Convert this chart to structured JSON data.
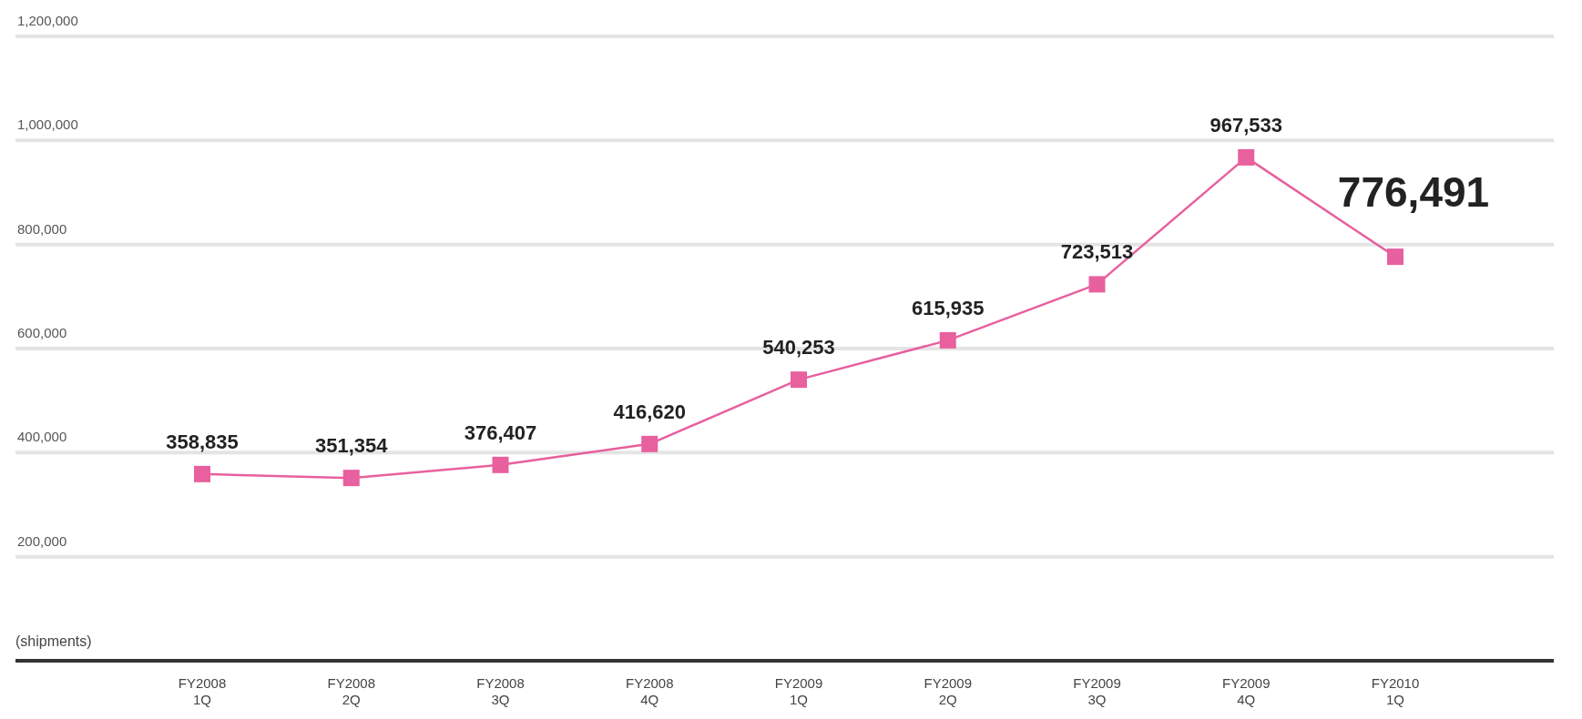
{
  "chart_data": {
    "type": "line",
    "ylabel": "(shipments)",
    "categories": [
      "FY2008\n1Q",
      "FY2008\n2Q",
      "FY2008\n3Q",
      "FY2008\n4Q",
      "FY2009\n1Q",
      "FY2009\n2Q",
      "FY2009\n3Q",
      "FY2009\n4Q",
      "FY2010\n1Q"
    ],
    "series": [
      {
        "color": "#e8609e",
        "values": [
          358835,
          351354,
          376407,
          416620,
          540253,
          615935,
          723513,
          967533,
          776491
        ],
        "value_labels": [
          "358,835",
          "351,354",
          "376,407",
          "416,620",
          "540,253",
          "615,935",
          "723,513",
          "967,533",
          "776,491"
        ]
      }
    ],
    "ylim": [
      0,
      1200000
    ],
    "yticks": [
      "200,000",
      "400,000",
      "600,000",
      "800,000",
      "1,000,000",
      "1,200,000"
    ],
    "grid": "y",
    "marker": "square",
    "line_style": "solid"
  }
}
